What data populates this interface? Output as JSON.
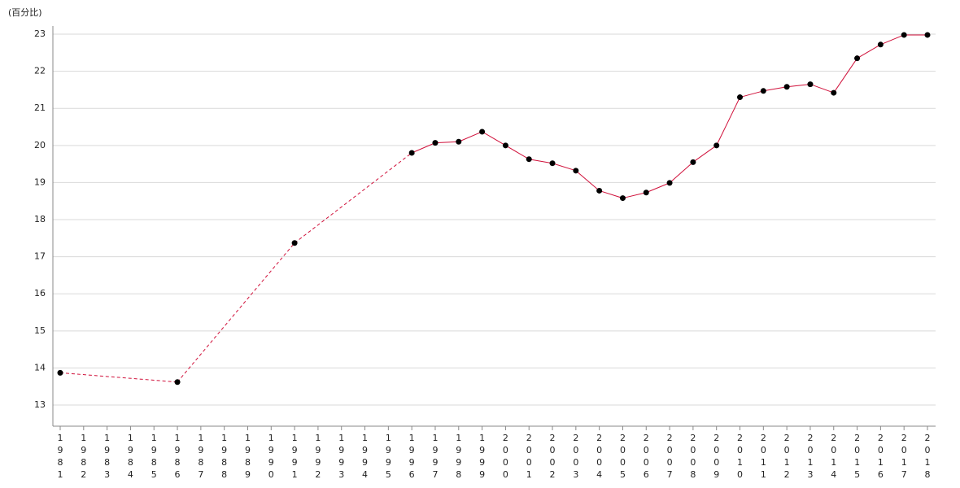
{
  "chart_data": {
    "type": "line",
    "unit_label": "(百分比)",
    "categories": [
      "1981",
      "1982",
      "1983",
      "1984",
      "1985",
      "1986",
      "1987",
      "1988",
      "1989",
      "1990",
      "1991",
      "1992",
      "1993",
      "1994",
      "1995",
      "1996",
      "1997",
      "1998",
      "1999",
      "2000",
      "2001",
      "2002",
      "2003",
      "2004",
      "2005",
      "2006",
      "2007",
      "2008",
      "2009",
      "2010",
      "2011",
      "2012",
      "2013",
      "2014",
      "2015",
      "2016",
      "2017",
      "2018"
    ],
    "values": [
      13.87,
      null,
      null,
      null,
      null,
      13.62,
      null,
      null,
      null,
      null,
      17.37,
      null,
      null,
      null,
      null,
      19.8,
      20.07,
      20.1,
      20.37,
      20.0,
      19.63,
      19.52,
      19.32,
      18.78,
      18.58,
      18.73,
      18.99,
      19.55,
      20.0,
      21.3,
      21.47,
      21.58,
      21.65,
      21.42,
      22.35,
      22.72,
      22.98,
      22.98
    ],
    "color": "#d0103a",
    "marker_color": "#000000",
    "ylim": [
      12.43,
      23.22
    ],
    "yticks": [
      13,
      14,
      15,
      16,
      17,
      18,
      19,
      20,
      21,
      22,
      23
    ],
    "grid": true
  }
}
